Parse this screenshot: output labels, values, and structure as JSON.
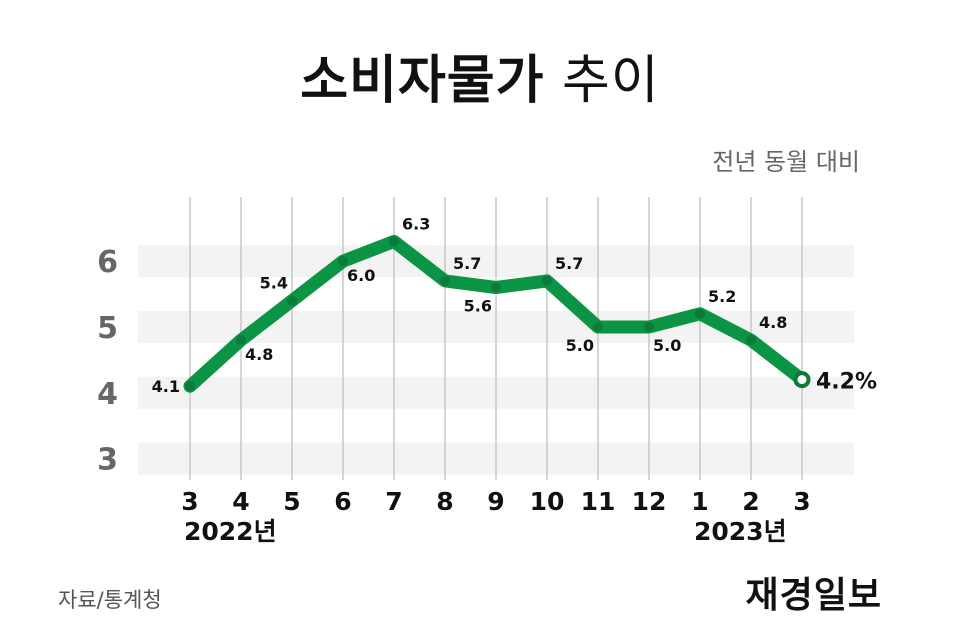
{
  "title": {
    "bold": "소비자물가",
    "light": "추이"
  },
  "subtitle": "전년 동월 대비",
  "source": "자료/통계청",
  "brand": "재경일보",
  "chart_data": {
    "type": "line",
    "categories": [
      "3",
      "4",
      "5",
      "6",
      "7",
      "8",
      "9",
      "10",
      "11",
      "12",
      "1",
      "2",
      "3"
    ],
    "year_labels": [
      {
        "index": 0,
        "label": "2022년"
      },
      {
        "index": 10,
        "label": "2023년"
      }
    ],
    "series": [
      {
        "values": [
          4.1,
          4.8,
          5.4,
          6.0,
          6.3,
          5.7,
          5.6,
          5.7,
          5.0,
          5.0,
          5.2,
          4.8,
          4.2
        ]
      }
    ],
    "point_labels": [
      "4.1",
      "4.8",
      "5.4",
      "6.0",
      "6.3",
      "5.7",
      "5.6",
      "5.7",
      "5.0",
      "5.0",
      "5.2",
      "4.8",
      "4.2%"
    ],
    "label_positions": [
      "left",
      "below",
      "above-left",
      "below",
      "above-right",
      "above-right",
      "below-left",
      "above-right",
      "below-left",
      "below-right",
      "above-right",
      "above-right",
      "right"
    ],
    "yticks": [
      3,
      4,
      5,
      6
    ],
    "ylim": [
      2.75,
      6.55
    ],
    "grid": true,
    "colors": {
      "line": "#0a9444",
      "marker": "#0b7a3a",
      "band": "#f3f3f3",
      "gridline": "#c8c8c8",
      "tick": "#666666"
    }
  }
}
